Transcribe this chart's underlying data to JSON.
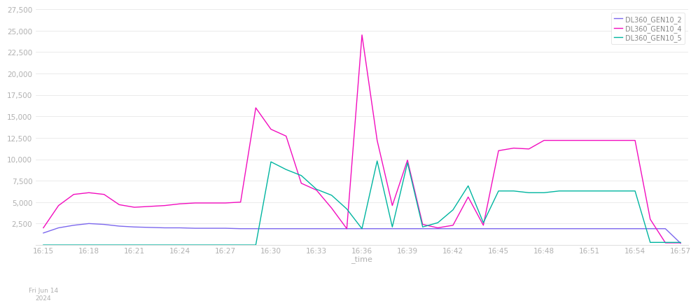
{
  "title": "",
  "xlabel": "_time",
  "background_color": "#ffffff",
  "grid_color": "#e8e8e8",
  "series": [
    {
      "name": "DL360_GEN10_2",
      "color": "#7c68ee",
      "values": [
        1400,
        2000,
        2300,
        2500,
        2400,
        2200,
        2100,
        2050,
        2000,
        2000,
        1950,
        1950,
        1950,
        1900,
        1900,
        1900,
        1900,
        1900,
        1900,
        1900,
        1900,
        1900,
        1900,
        1900,
        1900,
        1900,
        1900,
        1900,
        1900,
        1900,
        1900,
        1900,
        1900,
        1900,
        1900,
        1900,
        1900,
        1900,
        1900,
        1900,
        1900,
        1900,
        200
      ]
    },
    {
      "name": "DL360_GEN10_4",
      "color": "#f20dbf",
      "values": [
        2000,
        4600,
        5900,
        6100,
        5900,
        4700,
        4400,
        4500,
        4600,
        4800,
        4900,
        4900,
        4900,
        5000,
        16000,
        13500,
        12700,
        7200,
        6400,
        4300,
        1900,
        24500,
        12200,
        4600,
        9900,
        2400,
        2000,
        2300,
        5600,
        2300,
        11000,
        11300,
        11200,
        12200,
        12200,
        12200,
        12200,
        12200,
        12200,
        12200,
        3000,
        250,
        250
      ]
    },
    {
      "name": "DL360_GEN10_5",
      "color": "#00b5a0",
      "values": [
        0,
        0,
        0,
        0,
        0,
        0,
        0,
        0,
        0,
        0,
        0,
        0,
        0,
        0,
        0,
        9700,
        8800,
        8100,
        6500,
        5800,
        4200,
        1900,
        9800,
        2100,
        9600,
        2100,
        2600,
        4100,
        6900,
        2600,
        6300,
        6300,
        6100,
        6100,
        6300,
        6300,
        6300,
        6300,
        6300,
        6300,
        300,
        300,
        300
      ]
    }
  ],
  "xtick_labels": [
    "16:15",
    "16:18",
    "16:21",
    "16:24",
    "16:27",
    "16:30",
    "16:33",
    "16:36",
    "16:39",
    "16:42",
    "16:45",
    "16:48",
    "16:51",
    "16:54",
    "16:57"
  ],
  "xtick_positions": [
    0,
    3,
    6,
    9,
    12,
    15,
    18,
    21,
    24,
    27,
    30,
    33,
    36,
    39,
    42
  ],
  "ylim": [
    0,
    27500
  ],
  "ytick_values": [
    2500,
    5000,
    7500,
    10000,
    12500,
    15000,
    17500,
    20000,
    22500,
    25000,
    27500
  ],
  "date_label": "Fri Jun 14\n2024",
  "linewidth": 1.0,
  "tick_fontsize": 7.5,
  "tick_color": "#b0b0b0",
  "legend_fontsize": 7,
  "legend_color": "#888888"
}
